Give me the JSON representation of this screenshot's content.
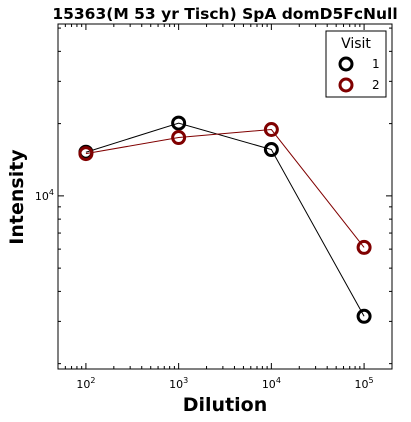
{
  "chart_data": {
    "type": "line",
    "title": "15363(M 53 yr Tisch) SpA domD5FcNull",
    "xlabel": "Dilution",
    "ylabel": "Intensity",
    "x_scale": "log",
    "y_scale": "log",
    "xlim": [
      50,
      200000
    ],
    "ylim": [
      1900,
      52000
    ],
    "x_ticks": [
      100,
      1000,
      10000,
      100000
    ],
    "x_tick_labels": [
      {
        "base": "10",
        "exp": "2"
      },
      {
        "base": "10",
        "exp": "3"
      },
      {
        "base": "10",
        "exp": "4"
      },
      {
        "base": "10",
        "exp": "5"
      }
    ],
    "y_ticks": [
      10000
    ],
    "y_tick_labels": [
      {
        "base": "10",
        "exp": "4"
      }
    ],
    "legend": {
      "title": "Visit",
      "placement": "top-right"
    },
    "grid": false,
    "series": [
      {
        "name": "1",
        "color": "#000000",
        "x": [
          100,
          1000,
          10000,
          100000
        ],
        "y": [
          15200,
          20100,
          15600,
          3150
        ]
      },
      {
        "name": "2",
        "color": "#800000",
        "x": [
          100,
          1000,
          10000,
          100000
        ],
        "y": [
          15000,
          17500,
          18900,
          6100
        ]
      }
    ]
  }
}
